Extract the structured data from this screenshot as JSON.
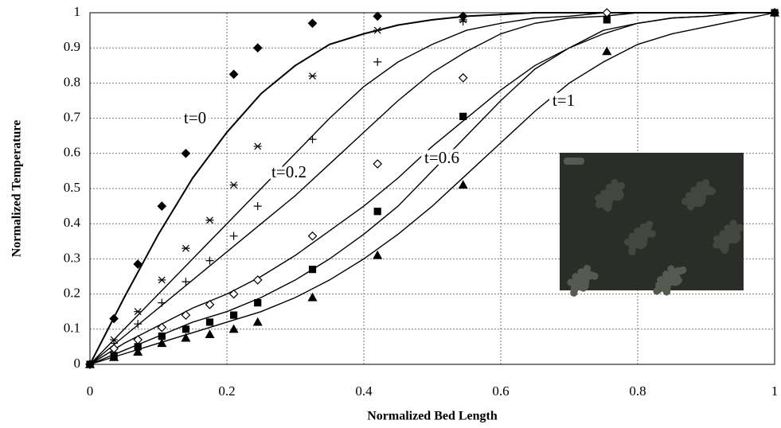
{
  "chart_data": {
    "type": "scatter",
    "x_label": "Normalized Bed Length",
    "y_label": "Normalized Temperature",
    "xlim": [
      0,
      1
    ],
    "ylim": [
      0,
      1
    ],
    "xticks": [
      0,
      0.2,
      0.4,
      0.6,
      0.8,
      1
    ],
    "yticks": [
      0,
      0.1,
      0.2,
      0.3,
      0.4,
      0.5,
      0.6,
      0.7,
      0.8,
      0.9,
      1
    ],
    "grid": true,
    "annotations": [
      "t=0",
      "t=0.2",
      "t=0.6",
      "t=1"
    ],
    "series": [
      {
        "marker": "diamond",
        "color": "#000000",
        "x": [
          0,
          0.035,
          0.07,
          0.105,
          0.14,
          0.21,
          0.245,
          0.325,
          0.42,
          0.545,
          1
        ],
        "values": [
          0,
          0.13,
          0.285,
          0.45,
          0.6,
          0.825,
          0.9,
          0.97,
          0.99,
          0.99,
          1
        ]
      },
      {
        "marker": "asterisk",
        "color": "#000000",
        "x": [
          0,
          0.035,
          0.07,
          0.105,
          0.14,
          0.175,
          0.21,
          0.245,
          0.325,
          0.42,
          0.545,
          1
        ],
        "values": [
          0,
          0.07,
          0.15,
          0.24,
          0.33,
          0.41,
          0.51,
          0.62,
          0.82,
          0.95,
          0.98,
          1
        ]
      },
      {
        "marker": "plus",
        "color": "#000000",
        "x": [
          0,
          0.035,
          0.07,
          0.105,
          0.14,
          0.175,
          0.21,
          0.245,
          0.325,
          0.42,
          0.545,
          1
        ],
        "values": [
          0,
          0.06,
          0.115,
          0.175,
          0.235,
          0.295,
          0.365,
          0.45,
          0.64,
          0.86,
          0.975,
          1
        ]
      },
      {
        "marker": "open-diamond",
        "color": "#000000",
        "x": [
          0,
          0.035,
          0.07,
          0.105,
          0.14,
          0.175,
          0.21,
          0.245,
          0.325,
          0.42,
          0.545,
          0.755,
          1
        ],
        "values": [
          0,
          0.045,
          0.07,
          0.105,
          0.14,
          0.17,
          0.2,
          0.24,
          0.365,
          0.57,
          0.815,
          1,
          1
        ]
      },
      {
        "marker": "square",
        "color": "#000000",
        "x": [
          0,
          0.035,
          0.07,
          0.105,
          0.14,
          0.175,
          0.21,
          0.245,
          0.325,
          0.42,
          0.545,
          0.755,
          1
        ],
        "values": [
          0,
          0.025,
          0.05,
          0.08,
          0.1,
          0.12,
          0.14,
          0.175,
          0.27,
          0.435,
          0.705,
          0.98,
          1
        ]
      },
      {
        "marker": "triangle",
        "color": "#000000",
        "x": [
          0,
          0.035,
          0.07,
          0.105,
          0.14,
          0.175,
          0.21,
          0.245,
          0.325,
          0.42,
          0.545,
          0.755,
          1
        ],
        "values": [
          0,
          0.02,
          0.035,
          0.06,
          0.075,
          0.085,
          0.1,
          0.12,
          0.19,
          0.31,
          0.51,
          0.89,
          1
        ]
      }
    ],
    "curve_x": [
      0,
      0.05,
      0.1,
      0.15,
      0.2,
      0.25,
      0.3,
      0.35,
      0.4,
      0.45,
      0.5,
      0.55,
      0.6,
      0.65,
      0.7,
      0.75,
      0.8,
      0.85,
      0.9,
      0.95,
      1
    ],
    "curves": [
      {
        "values": [
          0,
          0.19,
          0.37,
          0.53,
          0.66,
          0.77,
          0.85,
          0.91,
          0.94,
          0.965,
          0.98,
          0.99,
          0.995,
          1,
          1,
          1,
          1,
          1,
          1,
          1,
          1
        ]
      },
      {
        "values": [
          0,
          0.1,
          0.2,
          0.3,
          0.4,
          0.5,
          0.6,
          0.7,
          0.79,
          0.86,
          0.91,
          0.95,
          0.97,
          0.985,
          0.99,
          1,
          1,
          1,
          1,
          1,
          1
        ]
      },
      {
        "values": [
          0,
          0.08,
          0.16,
          0.24,
          0.32,
          0.4,
          0.48,
          0.57,
          0.66,
          0.75,
          0.83,
          0.89,
          0.94,
          0.97,
          0.985,
          0.99,
          1,
          1,
          1,
          1,
          1
        ]
      },
      {
        "values": [
          0,
          0.06,
          0.11,
          0.16,
          0.2,
          0.25,
          0.31,
          0.38,
          0.45,
          0.53,
          0.62,
          0.7,
          0.78,
          0.85,
          0.9,
          0.94,
          0.97,
          0.985,
          0.99,
          1,
          1
        ]
      },
      {
        "values": [
          0,
          0.04,
          0.08,
          0.12,
          0.15,
          0.19,
          0.24,
          0.3,
          0.37,
          0.45,
          0.55,
          0.65,
          0.75,
          0.84,
          0.9,
          0.95,
          0.97,
          0.985,
          0.99,
          1,
          1
        ]
      },
      {
        "values": [
          0,
          0.03,
          0.06,
          0.09,
          0.12,
          0.15,
          0.19,
          0.24,
          0.3,
          0.37,
          0.45,
          0.54,
          0.63,
          0.72,
          0.8,
          0.86,
          0.91,
          0.94,
          0.96,
          0.98,
          1
        ]
      }
    ]
  }
}
